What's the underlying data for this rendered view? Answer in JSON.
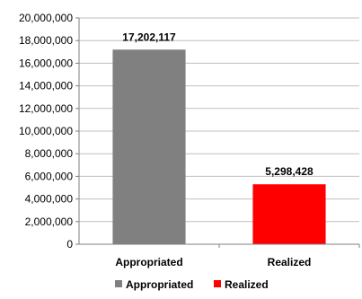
{
  "chart_data": {
    "type": "bar",
    "categories": [
      "Appropriated",
      "Realized"
    ],
    "values": [
      17202117,
      5298428
    ],
    "data_labels": [
      "17,202,117",
      "5,298,428"
    ],
    "colors": [
      "#808080",
      "#ff0000"
    ],
    "ylim": [
      0,
      20000000
    ],
    "y_ticks": [
      0,
      2000000,
      4000000,
      6000000,
      8000000,
      10000000,
      12000000,
      14000000,
      16000000,
      18000000,
      20000000
    ],
    "y_tick_labels": [
      "0",
      "2,000,000",
      "4,000,000",
      "6,000,000",
      "8,000,000",
      "10,000,000",
      "12,000,000",
      "14,000,000",
      "16,000,000",
      "18,000,000",
      "20,000,000"
    ],
    "grid": true,
    "legend": {
      "placement": "bottom",
      "entries": [
        {
          "label": "Appropriated",
          "color": "#808080"
        },
        {
          "label": "Realized",
          "color": "#ff0000"
        }
      ]
    }
  }
}
